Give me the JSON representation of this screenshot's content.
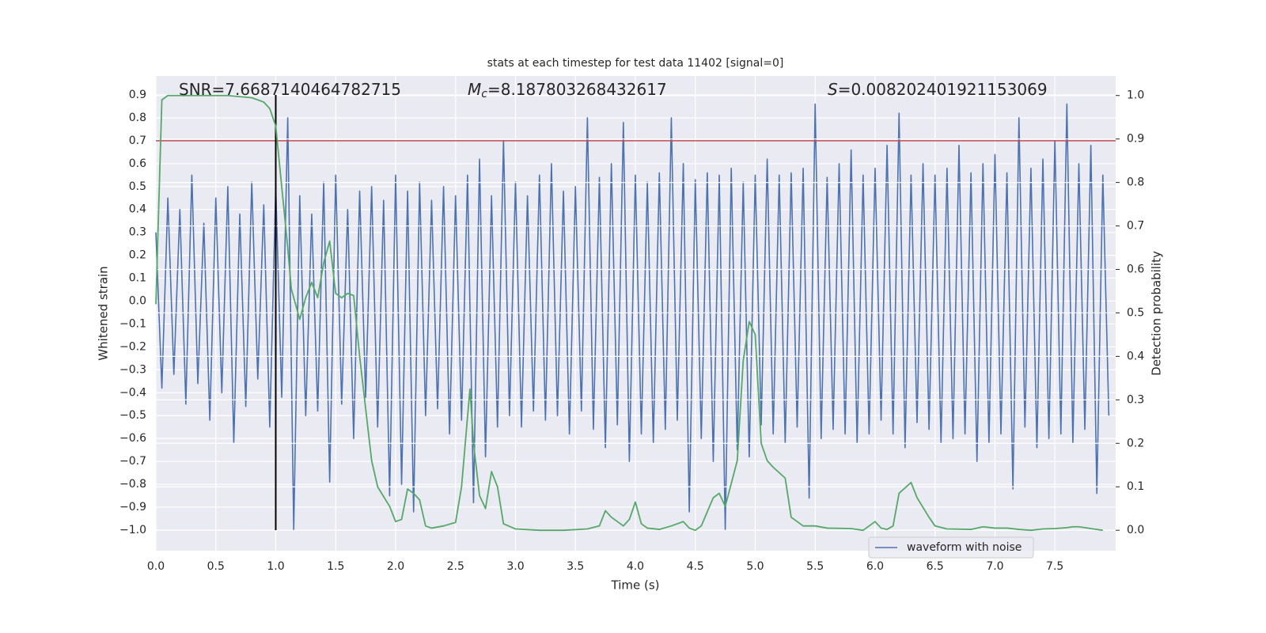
{
  "chart_data": {
    "type": "line",
    "title": "stats at each timestep for test data 11402 [signal=0]",
    "xlabel": "Time (s)",
    "ylabel": "Whitened strain",
    "y2label": "Detection probability",
    "annotations": [
      {
        "text": "SNR=7.6687140464782715"
      },
      {
        "symbol": "M",
        "subscript": "c",
        "text": "=8.187803268432617"
      },
      {
        "symbol": "S",
        "text": "=0.008202401921153069"
      }
    ],
    "xlim": [
      0,
      8.007
    ],
    "xticks": [
      {
        "value": 0,
        "label": "0.0"
      },
      0.5,
      {
        "value": 1,
        "label": "1.0"
      },
      1.5,
      {
        "value": 2,
        "label": "2.0"
      },
      2.5,
      {
        "value": 3,
        "label": "3.0"
      },
      3.5,
      {
        "value": 4,
        "label": "4.0"
      },
      4.5,
      {
        "value": 5,
        "label": "5.0"
      },
      5.5,
      {
        "value": 6,
        "label": "6.0"
      },
      6.5,
      {
        "value": 7,
        "label": "7.0"
      },
      7.5
    ],
    "ylim": [
      -1.09,
      0.983
    ],
    "yticks": [
      {
        "value": -1,
        "label": "−1.0"
      },
      {
        "value": -0.9,
        "label": "−0.9"
      },
      {
        "value": -0.8,
        "label": "−0.8"
      },
      {
        "value": -0.7,
        "label": "−0.7"
      },
      {
        "value": -0.6,
        "label": "−0.6"
      },
      {
        "value": -0.5,
        "label": "−0.5"
      },
      {
        "value": -0.4,
        "label": "−0.4"
      },
      {
        "value": -0.3,
        "label": "−0.3"
      },
      {
        "value": -0.2,
        "label": "−0.2"
      },
      {
        "value": -0.1,
        "label": "−0.1"
      },
      {
        "value": 0,
        "label": "0.0"
      },
      0.1,
      0.2,
      0.3,
      0.4,
      0.5,
      0.6,
      0.7,
      0.8,
      0.9
    ],
    "y2lim": [
      -0.047,
      1.045
    ],
    "y2ticks": [
      {
        "value": 0,
        "label": "0.0"
      },
      0.1,
      0.2,
      0.3,
      0.4,
      0.5,
      0.6,
      0.7,
      0.8,
      0.9,
      {
        "value": 1,
        "label": "1.0"
      }
    ],
    "grid": true,
    "legend": "lower right",
    "hline": {
      "y": 0.7,
      "color": "#c44e52"
    },
    "vline": {
      "x": 1.0,
      "ymin": -1.0,
      "ymax": 0.9,
      "color": "#000000"
    },
    "series": [
      {
        "name": "waveform with noise",
        "color": "#4c72b0",
        "x": [
          0,
          0.05,
          0.1,
          0.15,
          0.2,
          0.25,
          0.3,
          0.35,
          0.4,
          0.45,
          0.5,
          0.55,
          0.6,
          0.65,
          0.7,
          0.75,
          0.8,
          0.85,
          0.9,
          0.95,
          1,
          1.05,
          1.1,
          1.15,
          1.2,
          1.25,
          1.3,
          1.35,
          1.4,
          1.45,
          1.5,
          1.55,
          1.6,
          1.65,
          1.7,
          1.75,
          1.8,
          1.85,
          1.9,
          1.95,
          2,
          2.05,
          2.1,
          2.15,
          2.2,
          2.25,
          2.3,
          2.35,
          2.4,
          2.45,
          2.5,
          2.55,
          2.6,
          2.65,
          2.7,
          2.75,
          2.8,
          2.85,
          2.9,
          2.95,
          3,
          3.05,
          3.1,
          3.15,
          3.2,
          3.25,
          3.3,
          3.35,
          3.4,
          3.45,
          3.5,
          3.55,
          3.6,
          3.65,
          3.7,
          3.75,
          3.8,
          3.85,
          3.9,
          3.95,
          4,
          4.05,
          4.1,
          4.15,
          4.2,
          4.25,
          4.3,
          4.35,
          4.4,
          4.45,
          4.5,
          4.55,
          4.6,
          4.65,
          4.7,
          4.75,
          4.8,
          4.85,
          4.9,
          4.95,
          5,
          5.05,
          5.1,
          5.15,
          5.2,
          5.25,
          5.3,
          5.35,
          5.4,
          5.45,
          5.5,
          5.55,
          5.6,
          5.65,
          5.7,
          5.75,
          5.8,
          5.85,
          5.9,
          5.95,
          6,
          6.05,
          6.1,
          6.15,
          6.2,
          6.25,
          6.3,
          6.35,
          6.4,
          6.45,
          6.5,
          6.55,
          6.6,
          6.65,
          6.7,
          6.75,
          6.8,
          6.85,
          6.9,
          6.95,
          7,
          7.05,
          7.1,
          7.15,
          7.2,
          7.25,
          7.3,
          7.35,
          7.4,
          7.45,
          7.5,
          7.55,
          7.6,
          7.65,
          7.7,
          7.75,
          7.8,
          7.85,
          7.9,
          7.95
        ],
        "values": [
          0.3,
          -0.38,
          0.45,
          -0.32,
          0.4,
          -0.45,
          0.55,
          -0.36,
          0.34,
          -0.52,
          0.45,
          -0.4,
          0.5,
          -0.62,
          0.38,
          -0.46,
          0.52,
          -0.34,
          0.42,
          -0.55,
          0.5,
          -0.42,
          0.8,
          -1.0,
          0.46,
          -0.5,
          0.38,
          -0.48,
          0.52,
          -0.79,
          0.55,
          -0.45,
          0.4,
          -0.6,
          0.48,
          -0.42,
          0.5,
          -0.55,
          0.44,
          -0.85,
          0.55,
          -0.8,
          0.48,
          -0.92,
          0.52,
          -0.5,
          0.44,
          -0.47,
          0.5,
          -0.58,
          0.46,
          -0.52,
          0.55,
          -0.88,
          0.62,
          -0.68,
          0.46,
          -0.55,
          0.7,
          -0.5,
          0.52,
          -0.55,
          0.46,
          -0.48,
          0.55,
          -0.52,
          0.6,
          -0.5,
          0.48,
          -0.58,
          0.5,
          -0.48,
          0.8,
          -0.56,
          0.54,
          -0.64,
          0.6,
          -0.54,
          0.78,
          -0.7,
          0.55,
          -0.58,
          0.52,
          -0.62,
          0.56,
          -0.56,
          0.8,
          -0.52,
          0.6,
          -0.92,
          0.53,
          -0.6,
          0.56,
          -0.7,
          0.55,
          -1.0,
          0.58,
          -0.65,
          0.52,
          -0.68,
          0.55,
          -0.54,
          0.62,
          -0.58,
          0.55,
          -0.62,
          0.56,
          -0.55,
          0.58,
          -0.86,
          0.86,
          -0.6,
          0.54,
          -0.56,
          0.6,
          -0.58,
          0.66,
          -0.62,
          0.55,
          -0.58,
          0.58,
          -0.52,
          0.68,
          -0.58,
          0.82,
          -0.64,
          0.55,
          -0.53,
          0.6,
          -0.56,
          0.55,
          -0.62,
          0.58,
          -0.6,
          0.68,
          -0.58,
          0.56,
          -0.7,
          0.6,
          -0.62,
          0.64,
          -0.58,
          0.56,
          -0.82,
          0.8,
          -0.55,
          0.58,
          -0.64,
          0.62,
          -0.6,
          0.7,
          -0.58,
          0.86,
          -0.62,
          0.6,
          -0.56,
          0.68,
          -0.84,
          0.55,
          -0.5
        ]
      },
      {
        "color": "#55a868",
        "axis": "y2",
        "x": [
          0,
          0.05,
          0.1,
          0.2,
          0.4,
          0.6,
          0.8,
          0.9,
          0.95,
          1,
          1.05,
          1.1,
          1.13,
          1.2,
          1.25,
          1.3,
          1.35,
          1.4,
          1.45,
          1.5,
          1.55,
          1.6,
          1.65,
          1.7,
          1.8,
          1.85,
          1.95,
          2,
          2.05,
          2.1,
          2.15,
          2.2,
          2.25,
          2.3,
          2.4,
          2.5,
          2.55,
          2.62,
          2.65,
          2.7,
          2.75,
          2.8,
          2.85,
          2.9,
          3,
          3.2,
          3.4,
          3.6,
          3.7,
          3.75,
          3.8,
          3.9,
          3.95,
          4,
          4.05,
          4.1,
          4.2,
          4.3,
          4.4,
          4.45,
          4.5,
          4.55,
          4.65,
          4.7,
          4.75,
          4.85,
          4.9,
          4.95,
          5,
          5.05,
          5.1,
          5.15,
          5.25,
          5.3,
          5.4,
          5.5,
          5.6,
          5.8,
          5.9,
          5.95,
          6,
          6.05,
          6.1,
          6.15,
          6.2,
          6.3,
          6.35,
          6.45,
          6.5,
          6.6,
          6.8,
          6.9,
          7,
          7.1,
          7.2,
          7.3,
          7.4,
          7.5,
          7.6,
          7.65,
          7.7,
          7.8,
          7.9
        ],
        "values": [
          0.52,
          0.99,
          1.0,
          1.0,
          1.0,
          1.0,
          0.995,
          0.985,
          0.97,
          0.93,
          0.79,
          0.65,
          0.555,
          0.485,
          0.535,
          0.57,
          0.535,
          0.615,
          0.665,
          0.545,
          0.535,
          0.545,
          0.54,
          0.4,
          0.16,
          0.1,
          0.055,
          0.02,
          0.025,
          0.095,
          0.085,
          0.07,
          0.01,
          0.005,
          0.01,
          0.018,
          0.1,
          0.325,
          0.2,
          0.08,
          0.05,
          0.135,
          0.1,
          0.015,
          0.003,
          0.0,
          0.0,
          0.003,
          0.01,
          0.045,
          0.03,
          0.01,
          0.025,
          0.065,
          0.015,
          0.005,
          0.002,
          0.01,
          0.02,
          0.005,
          0.0,
          0.01,
          0.075,
          0.085,
          0.055,
          0.16,
          0.39,
          0.48,
          0.45,
          0.2,
          0.16,
          0.145,
          0.12,
          0.03,
          0.01,
          0.01,
          0.005,
          0.004,
          0.0,
          0.01,
          0.02,
          0.005,
          0.002,
          0.01,
          0.085,
          0.11,
          0.075,
          0.03,
          0.01,
          0.003,
          0.002,
          0.008,
          0.005,
          0.005,
          0.002,
          0.0,
          0.003,
          0.004,
          0.006,
          0.008,
          0.008,
          0.004,
          0.0
        ]
      }
    ]
  }
}
